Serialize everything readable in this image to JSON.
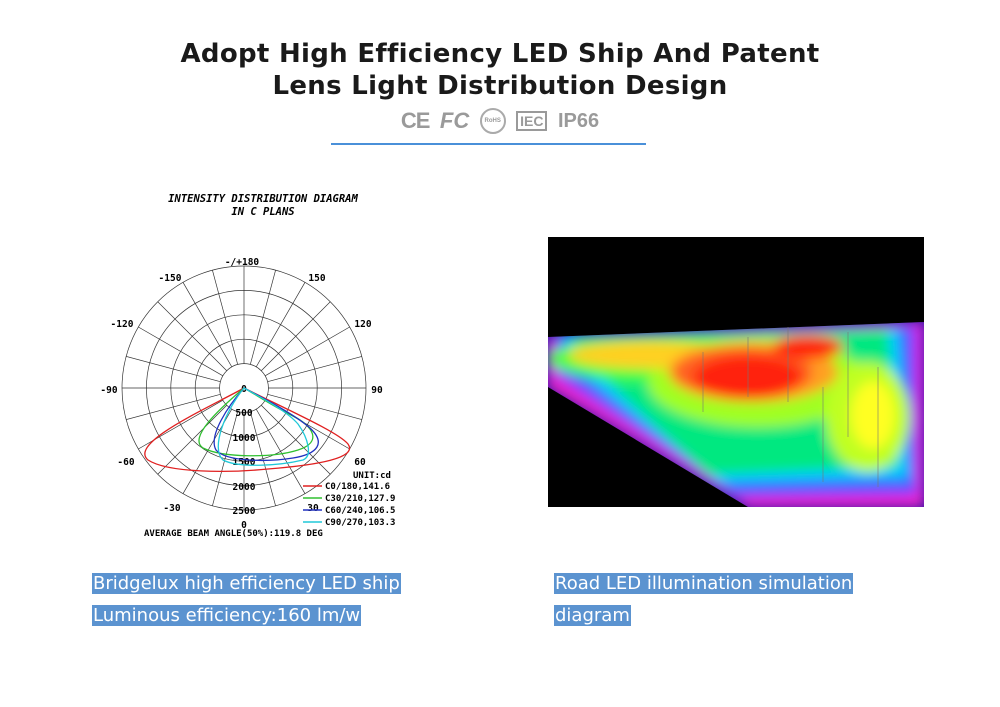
{
  "header": {
    "title_line1": "Adopt High Efficiency LED Ship And Patent",
    "title_line2": "Lens Light Distribution Design",
    "certifications": [
      "CE",
      "FC",
      "RoHS",
      "IEC",
      "IP66"
    ]
  },
  "diagram": {
    "title_line1": "INTENSITY DISTRIBUTION DIAGRAM",
    "title_line2": "IN C PLANS",
    "angle_labels": {
      "top": "-/+180",
      "n150": "-150",
      "p150": "150",
      "n120": "-120",
      "p120": "120",
      "n90": "-90",
      "p90": "90",
      "n60": "-60",
      "p60": "60",
      "n30": "-30",
      "p30": "30",
      "zero": "0"
    },
    "radial_labels": [
      "0",
      "500",
      "1000",
      "1500",
      "2000",
      "2500",
      "0"
    ],
    "unit": "UNIT:cd",
    "legend": [
      {
        "label": "C0/180,141.6",
        "color": "#e02020"
      },
      {
        "label": "C30/210,127.9",
        "color": "#30c030"
      },
      {
        "label": "C60/240,106.5",
        "color": "#2030c0"
      },
      {
        "label": "C90/270,103.3",
        "color": "#20c8d8"
      }
    ],
    "footer": "AVERAGE BEAM ANGLE(50%):119.8 DEG"
  },
  "captions": {
    "left_line1": "Bridgelux high efficiency LED ship",
    "left_line2": "Luminous efficiency:160 lm/w",
    "right_line1": "Road LED illumination simulation",
    "right_line2": "diagram"
  },
  "colors": {
    "accent": "#4a90d9",
    "caption_bg": "#5b93d0"
  }
}
